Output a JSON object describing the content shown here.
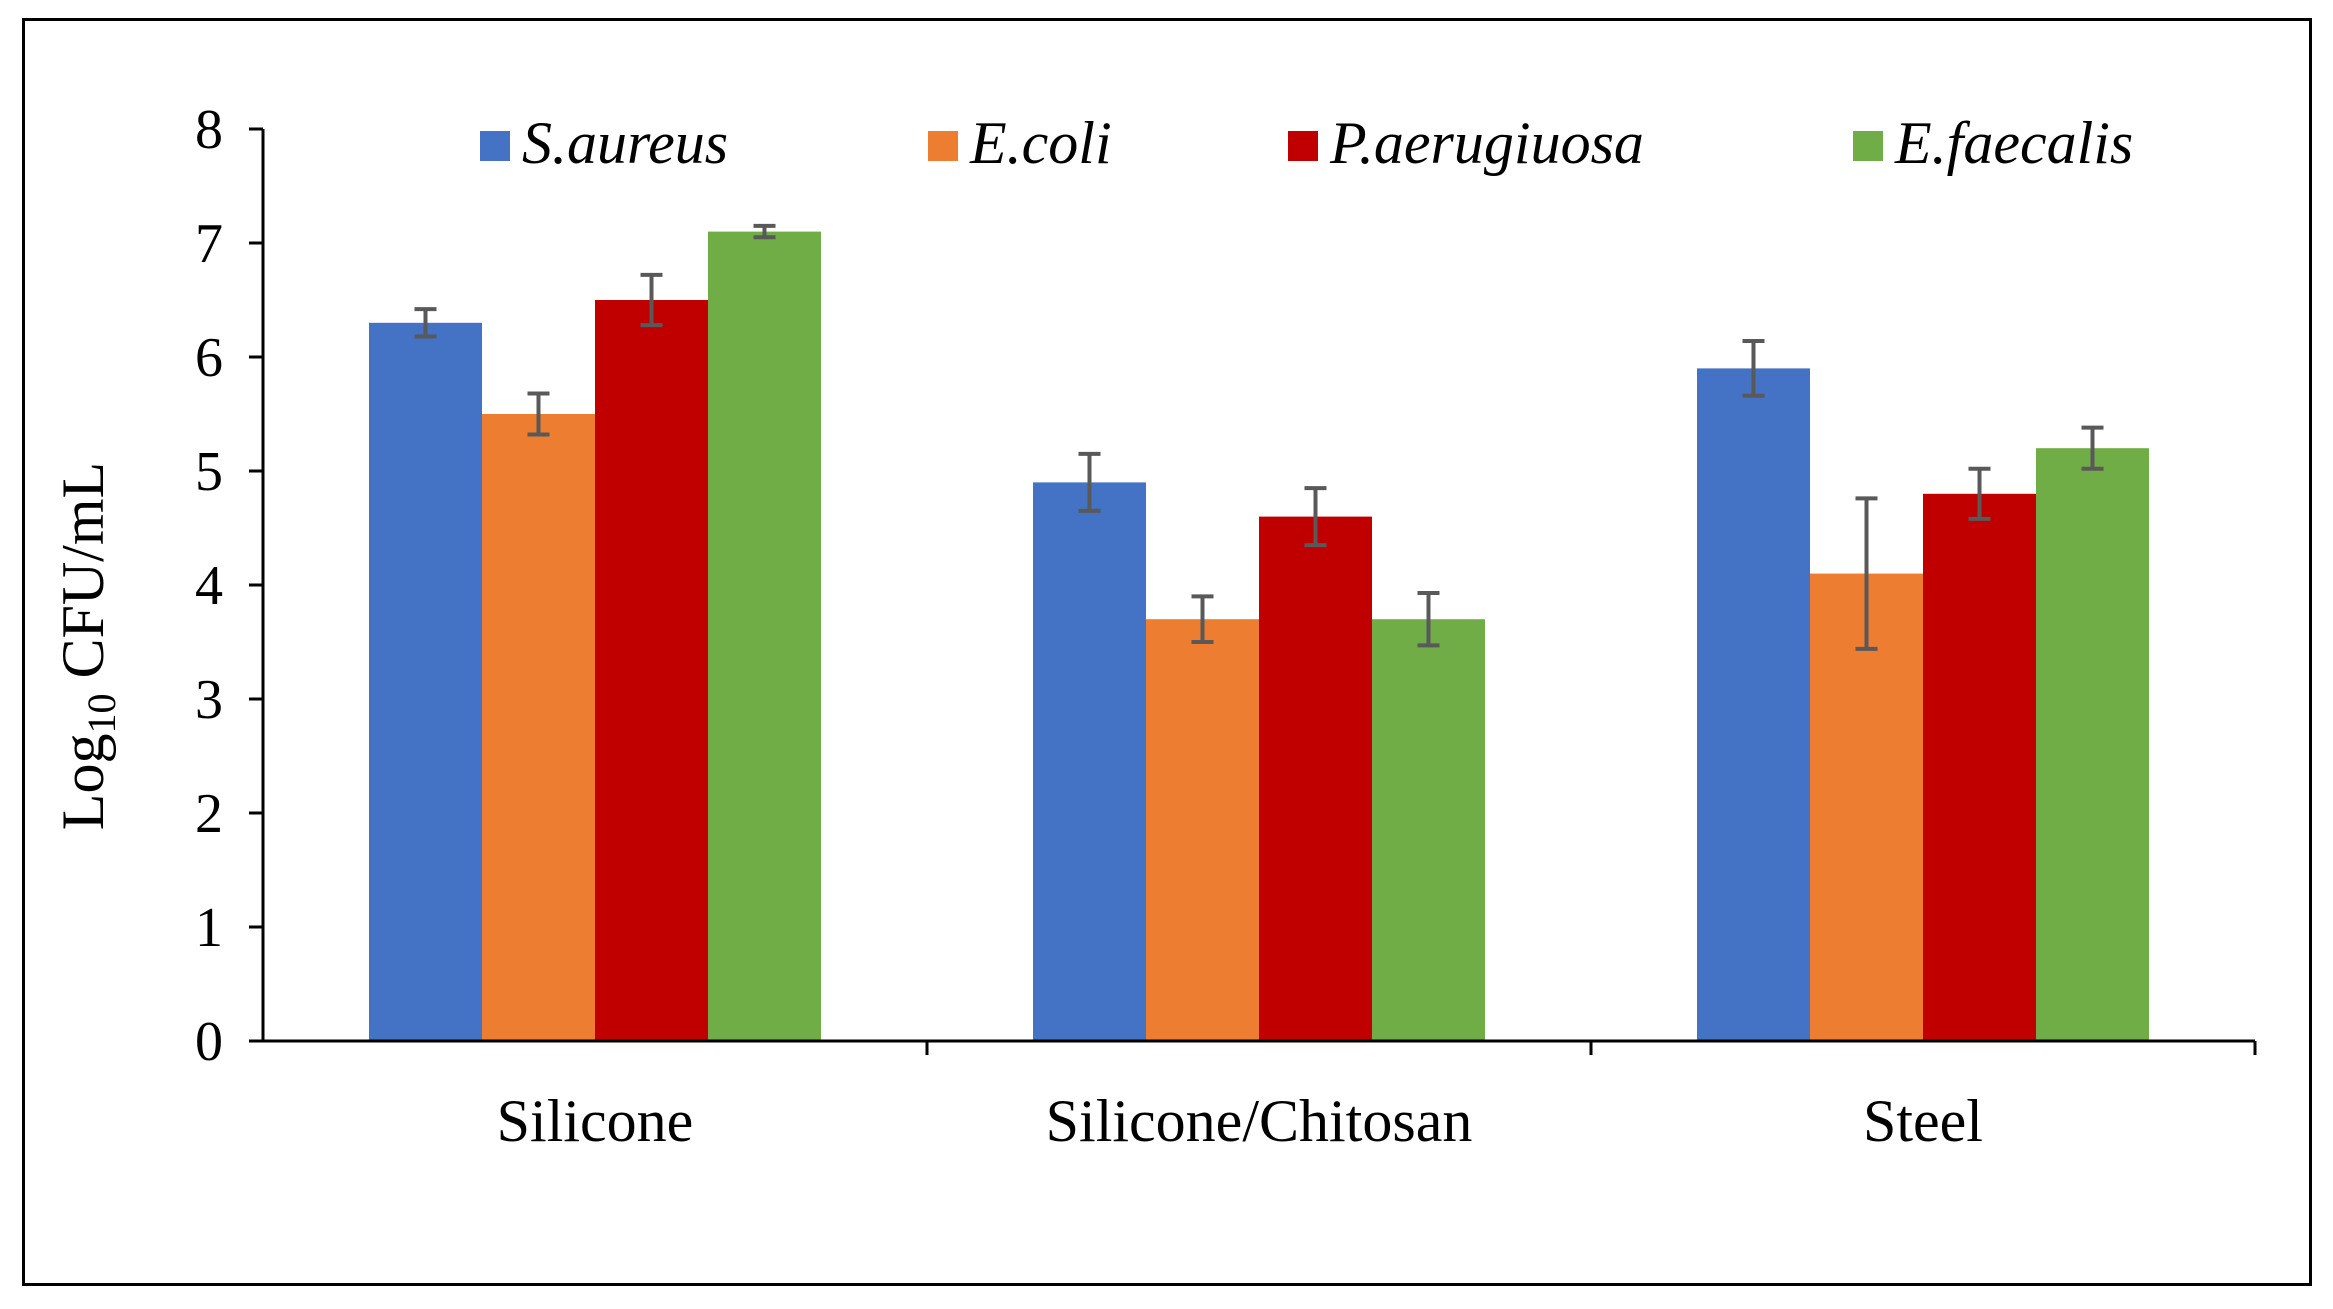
{
  "chart_data": {
    "type": "bar",
    "title": "",
    "xlabel": "",
    "ylabel": {
      "prefix": "Log",
      "subscript": "10",
      "suffix": " CFU/mL"
    },
    "ylim": [
      0,
      8
    ],
    "yticks": [
      0,
      1,
      2,
      3,
      4,
      5,
      6,
      7,
      8
    ],
    "grid": false,
    "legend_position": "top",
    "categories": [
      "Silicone",
      "Silicone/Chitosan",
      "Steel"
    ],
    "series": [
      {
        "name": "S.aureus",
        "color": "#4472C4",
        "values": [
          6.3,
          4.9,
          5.9
        ],
        "errors": [
          0.12,
          0.25,
          0.24
        ]
      },
      {
        "name": "E.coli",
        "color": "#ED7D31",
        "values": [
          5.5,
          3.7,
          4.1
        ],
        "errors": [
          0.18,
          0.2,
          0.66
        ]
      },
      {
        "name": "P.aerugiuosa",
        "color": "#C00000",
        "values": [
          6.5,
          4.6,
          4.8
        ],
        "errors": [
          0.22,
          0.25,
          0.22
        ]
      },
      {
        "name": "E.faecalis",
        "color": "#70AD47",
        "values": [
          7.1,
          3.7,
          5.2
        ],
        "errors": [
          0.05,
          0.23,
          0.18
        ]
      }
    ],
    "error_bar_color": "#595959"
  }
}
